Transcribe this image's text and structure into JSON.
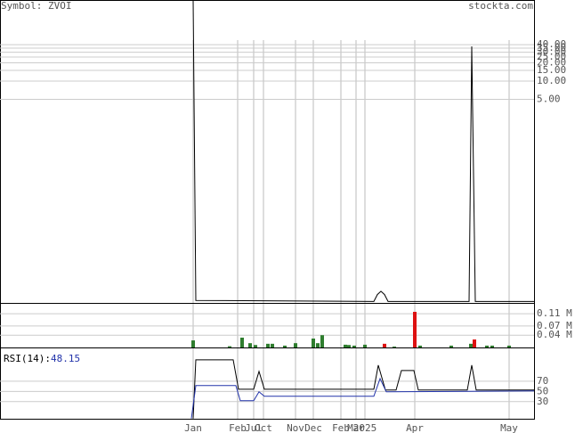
{
  "chart_data": {
    "type": "stock",
    "symbol_label": "Symbol: ZVOI",
    "site": "stockta.com",
    "xlim": [
      0,
      600
    ],
    "xticks": [
      {
        "value": 217,
        "label": "Jan"
      },
      {
        "value": 267,
        "label": "Feb"
      },
      {
        "value": 285,
        "label": "Jul"
      },
      {
        "value": 296,
        "label": "Oct"
      },
      {
        "value": 332,
        "label": "Nov"
      },
      {
        "value": 352,
        "label": "Dec"
      },
      {
        "value": 383,
        "label": "Feb"
      },
      {
        "value": 400,
        "label": "Mar"
      },
      {
        "value": 410,
        "label": "2025"
      },
      {
        "value": 466,
        "label": "Apr"
      },
      {
        "value": 572,
        "label": "May"
      }
    ],
    "price": {
      "log": true,
      "color": "#000000",
      "ylim": [
        0.00218,
        218
      ],
      "yticks": [
        {
          "value": 40,
          "label": "40.00"
        },
        {
          "value": 35,
          "label": "35.00"
        },
        {
          "value": 30,
          "label": "30.00"
        },
        {
          "value": 25,
          "label": "25.00"
        },
        {
          "value": 20,
          "label": "20.00"
        },
        {
          "value": 15,
          "label": "15.00"
        },
        {
          "value": 10,
          "label": "10.00"
        },
        {
          "value": 5,
          "label": "5.00"
        }
      ],
      "x": [
        217,
        220,
        420,
        424,
        428,
        432,
        436,
        527,
        530,
        534,
        600
      ],
      "values": [
        218,
        0.0024,
        0.0023,
        0.003,
        0.0034,
        0.003,
        0.0023,
        0.0023,
        37.4,
        0.0023,
        0.0023
      ]
    },
    "volume": {
      "ylim": [
        0,
        0.145
      ],
      "yticks": [
        {
          "value": 0.11,
          "label": "0.11 M"
        },
        {
          "value": 0.07,
          "label": "0.07 M"
        },
        {
          "value": 0.04,
          "label": "0.04 M"
        }
      ],
      "x": [
        217,
        258,
        272,
        281,
        287,
        301,
        306,
        320,
        332,
        352,
        357,
        362,
        388,
        392,
        398,
        410,
        432,
        443,
        466,
        472,
        507,
        529,
        533,
        547,
        553,
        572
      ],
      "values": [
        0.023,
        0.004,
        0.032,
        0.014,
        0.008,
        0.012,
        0.012,
        0.006,
        0.014,
        0.029,
        0.014,
        0.04,
        0.009,
        0.008,
        0.006,
        0.009,
        0.012,
        0.003,
        0.116,
        0.006,
        0.006,
        0.012,
        0.026,
        0.006,
        0.006,
        0.006
      ],
      "colors": [
        "#2e7d2e",
        "#2e7d2e",
        "#2e7d2e",
        "#2e7d2e",
        "#2e7d2e",
        "#2e7d2e",
        "#2e7d2e",
        "#2e7d2e",
        "#2e7d2e",
        "#2e7d2e",
        "#2e7d2e",
        "#2e7d2e",
        "#2e7d2e",
        "#2e7d2e",
        "#2e7d2e",
        "#2e7d2e",
        "#dd1111",
        "#2e7d2e",
        "#dd1111",
        "#2e7d2e",
        "#2e7d2e",
        "#2e7d2e",
        "#dd1111",
        "#2e7d2e",
        "#2e7d2e",
        "#2e7d2e"
      ]
    },
    "rsi": {
      "label": "RSI(14):",
      "value": 48.15,
      "value_color": "#2233aa",
      "ylim": [
        -3.5,
        136
      ],
      "yticks": [
        70,
        50,
        30
      ],
      "series": [
        {
          "color": "#000000",
          "x": [
            217,
            220,
            262,
            268,
            285,
            291,
            297,
            420,
            425,
            433,
            445,
            451,
            465,
            470,
            525,
            530,
            535,
            600
          ],
          "values": [
            -3,
            111.7,
            111.7,
            54.3,
            54.3,
            89.1,
            54.3,
            54.3,
            101.3,
            52.6,
            52.6,
            90.9,
            90.9,
            52.6,
            52.6,
            101.3,
            52.6,
            52.6
          ]
        },
        {
          "color": "#2233aa",
          "x": [
            215,
            220,
            265,
            270,
            285,
            291,
            297,
            420,
            427,
            434,
            600
          ],
          "values": [
            -3,
            61.3,
            61.3,
            31.7,
            31.7,
            49.1,
            40.4,
            40.4,
            75.2,
            49.1,
            50.9
          ]
        }
      ]
    }
  }
}
